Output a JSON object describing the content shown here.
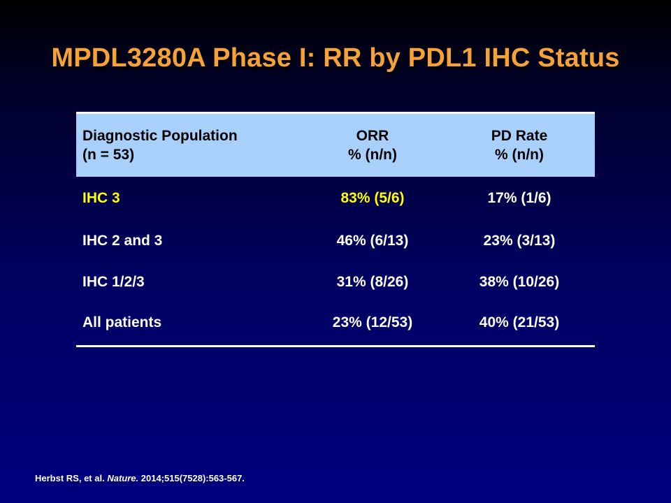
{
  "title": "MPDL3280A Phase I: RR by PDL1 IHC Status",
  "table": {
    "headers": [
      {
        "line1": "Diagnostic Population",
        "line2": "(n = 53)"
      },
      {
        "line1": "ORR",
        "line2": "% (n/n)"
      },
      {
        "line1": "PD Rate",
        "line2": "% (n/n)"
      }
    ],
    "rows": [
      {
        "population": "IHC 3",
        "orr": "83% (5/6)",
        "pd_rate": "17% (1/6)",
        "highlighted": true
      },
      {
        "population": "IHC 2 and 3",
        "orr": "46% (6/13)",
        "pd_rate": "23% (3/13)"
      },
      {
        "population": "IHC 1/2/3",
        "orr": "31% (8/26)",
        "pd_rate": "38% (10/26)"
      },
      {
        "population": "All patients",
        "orr": "23% (12/53)",
        "pd_rate": "40% (21/53)"
      }
    ]
  },
  "citation": {
    "authors": "Herbst  RS, et al.",
    "journal": "Nature.",
    "details": "2014;515(7528):563-567."
  },
  "colors": {
    "title": "#f5a238",
    "header_bg": "#a9d0fb",
    "highlight": "#ffff00",
    "background": "#000080"
  }
}
